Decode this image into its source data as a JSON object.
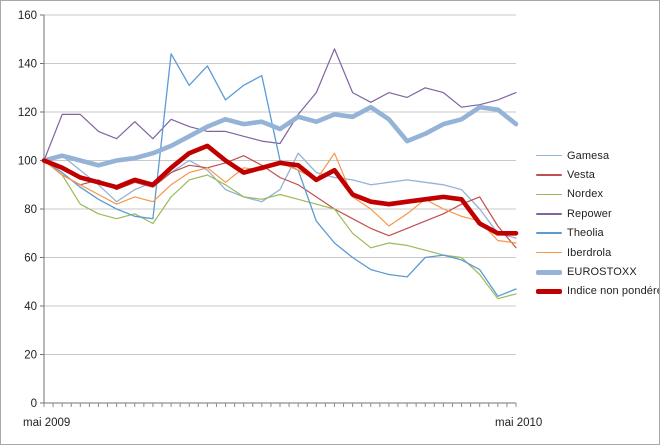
{
  "figure": {
    "background": "#FFFFFF",
    "border_color": "#A8A8A8"
  },
  "colors": {
    "grid": "#C9C9C9",
    "axis": "#737373",
    "tick": "#8C8C8C",
    "axis_text": "#1F1F1F",
    "legend_text": "#1F1F1F"
  },
  "chart_data": {
    "type": "line",
    "title": "",
    "subtitle": "",
    "grid": true,
    "legend_position": "right",
    "x_axis": {
      "start_label": "mai 2009",
      "end_label": "mai 2010",
      "minor_tick_count": 53
    },
    "y_axis": {
      "min": 0,
      "max": 160,
      "step": 20
    },
    "base_value": 100,
    "x_weeks": [
      0,
      2,
      4,
      6,
      8,
      10,
      12,
      14,
      16,
      18,
      20,
      22,
      24,
      26,
      28,
      30,
      32,
      34,
      36,
      38,
      40,
      42,
      44,
      46,
      48,
      50,
      52
    ],
    "series": [
      {
        "name": "Gamesa",
        "color": "#95B3D7",
        "thickness": 1.3,
        "values": [
          100,
          102,
          96,
          90,
          83,
          88,
          91,
          95,
          100,
          96,
          88,
          85,
          83,
          88,
          103,
          95,
          93,
          92,
          90,
          91,
          92,
          91,
          90,
          88,
          80,
          70,
          68
        ]
      },
      {
        "name": "Vesta",
        "color": "#C0504D",
        "thickness": 1.2,
        "values": [
          100,
          94,
          90,
          92,
          88,
          91,
          89,
          95,
          98,
          97,
          99,
          102,
          98,
          93,
          90,
          85,
          80,
          76,
          72,
          69,
          72,
          75,
          78,
          82,
          85,
          73,
          64
        ]
      },
      {
        "name": "Nordex",
        "color": "#9BBB59",
        "thickness": 1.2,
        "values": [
          100,
          94,
          82,
          78,
          76,
          78,
          74,
          85,
          92,
          94,
          90,
          85,
          84,
          86,
          84,
          82,
          80,
          70,
          64,
          66,
          65,
          63,
          61,
          60,
          53,
          43,
          45
        ]
      },
      {
        "name": "Repower",
        "color": "#8064A2",
        "thickness": 1.2,
        "values": [
          100,
          119,
          119,
          112,
          109,
          116,
          109,
          117,
          114,
          112,
          112,
          110,
          108,
          107,
          119,
          128,
          146,
          128,
          124,
          128,
          126,
          130,
          128,
          122,
          123,
          125,
          128
        ]
      },
      {
        "name": "Theolia",
        "color": "#5B9BD5",
        "thickness": 1.3,
        "values": [
          100,
          95,
          89,
          84,
          80,
          77,
          76,
          144,
          131,
          139,
          125,
          131,
          135,
          100,
          96,
          75,
          66,
          60,
          55,
          53,
          52,
          60,
          61,
          59,
          55,
          44,
          47
        ]
      },
      {
        "name": "Iberdrola",
        "color": "#F79646",
        "thickness": 1.2,
        "values": [
          100,
          94,
          90,
          86,
          82,
          85,
          83,
          90,
          95,
          97,
          91,
          97,
          96,
          99,
          96,
          92,
          103,
          85,
          80,
          73,
          78,
          84,
          80,
          77,
          75,
          67,
          66
        ]
      },
      {
        "name": "EUROSTOXX",
        "color": "#95B3D7",
        "thickness": 4.6,
        "values": [
          100,
          102,
          100,
          98,
          100,
          101,
          103,
          106,
          110,
          114,
          117,
          115,
          116,
          113,
          118,
          116,
          119,
          118,
          122,
          117,
          108,
          111,
          115,
          117,
          122,
          121,
          115
        ]
      },
      {
        "name": "Indice non pondéré",
        "color": "#C00000",
        "thickness": 4.6,
        "values": [
          100,
          97,
          93,
          91,
          89,
          92,
          90,
          97,
          103,
          106,
          100,
          95,
          97,
          99,
          98,
          92,
          96,
          86,
          83,
          82,
          83,
          84,
          85,
          84,
          74,
          70,
          70
        ]
      }
    ]
  }
}
